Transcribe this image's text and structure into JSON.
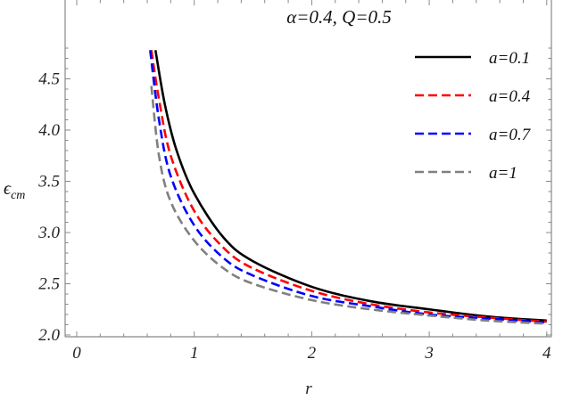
{
  "chart_data": {
    "type": "line",
    "title": "α=0.4, Q=0.5",
    "xlabel": "r",
    "ylabel": "ϵ",
    "ylabel_sub": "cm",
    "xlim": [
      -0.1,
      4.05
    ],
    "ylim": [
      1.98,
      4.92
    ],
    "xticks": [
      "0",
      "1",
      "2",
      "3",
      "4"
    ],
    "yticks": [
      "2.0",
      "2.5",
      "3.0",
      "3.5",
      "4.0",
      "4.5"
    ],
    "grid": false,
    "legend_position": "top-right",
    "series": [
      {
        "name": "a=0.1",
        "color": "#000000",
        "dash": "solid",
        "x": [
          0.67,
          0.75,
          0.85,
          1,
          1.25,
          1.5,
          2,
          2.5,
          3,
          3.5,
          4
        ],
        "y": [
          4.78,
          4.25,
          3.8,
          3.38,
          2.95,
          2.72,
          2.47,
          2.33,
          2.25,
          2.18,
          2.14
        ]
      },
      {
        "name": "a=0.4",
        "color": "#ff0000",
        "dash": "dashed",
        "x": [
          0.635,
          0.7,
          0.8,
          1,
          1.25,
          1.5,
          2,
          2.5,
          3,
          3.5,
          4
        ],
        "y": [
          4.78,
          4.3,
          3.75,
          3.21,
          2.85,
          2.65,
          2.43,
          2.3,
          2.22,
          2.17,
          2.13
        ]
      },
      {
        "name": "a=0.7",
        "color": "#0000ff",
        "dash": "dashed",
        "x": [
          0.625,
          0.7,
          0.8,
          1,
          1.25,
          1.5,
          2,
          2.5,
          3,
          3.5,
          4
        ],
        "y": [
          4.78,
          4.1,
          3.55,
          3.07,
          2.75,
          2.58,
          2.38,
          2.28,
          2.2,
          2.16,
          2.12
        ]
      },
      {
        "name": "a=1",
        "color": "#808080",
        "dash": "dashed",
        "x": [
          0.635,
          0.7,
          0.8,
          1,
          1.25,
          1.5,
          2,
          2.5,
          3,
          3.5,
          4
        ],
        "y": [
          4.43,
          3.75,
          3.3,
          2.92,
          2.65,
          2.5,
          2.34,
          2.25,
          2.19,
          2.14,
          2.11
        ]
      }
    ]
  }
}
